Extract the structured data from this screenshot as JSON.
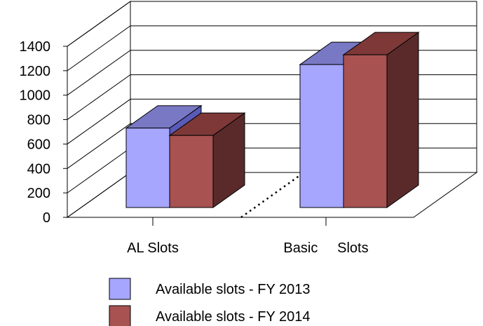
{
  "chart_data": {
    "type": "bar",
    "categories": [
      "AL Slots",
      "Basic     Slots"
    ],
    "series": [
      {
        "name": "Available slots - FY 2013",
        "values": [
          650,
          1170
        ]
      },
      {
        "name": "Available slots - FY 2014",
        "values": [
          590,
          1250
        ]
      }
    ],
    "yticks": [
      "0",
      "200",
      "400",
      "600",
      "800",
      "1000",
      "1200",
      "1400"
    ],
    "ylim": [
      0,
      1400
    ],
    "grid": true,
    "legend_position": "bottom",
    "colors": {
      "series": [
        {
          "front": "#a6a6ff",
          "top": "#7878c4",
          "side": "#5a5ab8"
        },
        {
          "front": "#a85252",
          "top": "#7e3838",
          "side": "#5a2a2a"
        }
      ]
    }
  }
}
